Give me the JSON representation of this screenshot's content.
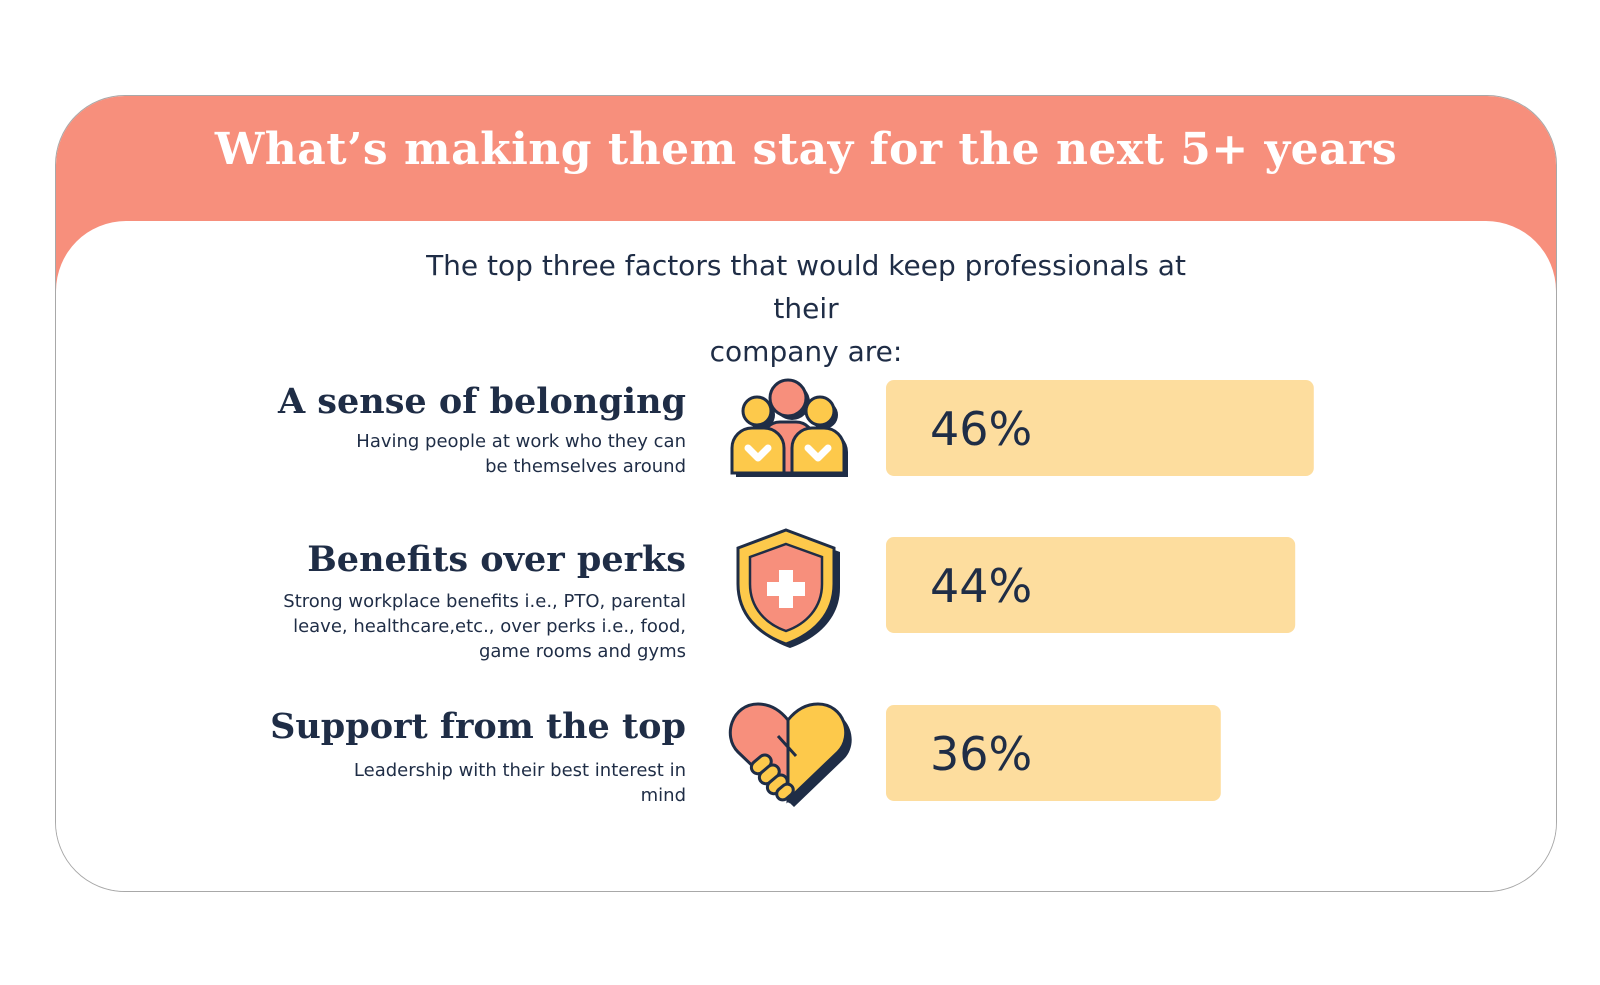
{
  "title": "What’s making them stay for the next 5+ years",
  "subtitle_line1": "The top three factors that would keep professionals at their",
  "subtitle_line2": "company are:",
  "colors": {
    "header": "#f78f7c",
    "bar": "#fddd9e",
    "text": "#1f2d46",
    "icon_yellow": "#fdc94b",
    "icon_coral": "#f78f7c"
  },
  "rows": [
    {
      "title": "A sense of belonging",
      "desc_lines": [
        "Having people at work who they can",
        "be themselves around"
      ],
      "icon": "people-heart-icon"
    },
    {
      "title": "Benefits over perks",
      "desc_lines": [
        "Strong workplace benefits i.e., PTO, parental",
        "leave, healthcare,etc., over perks i.e., food,",
        "game rooms and gyms"
      ],
      "icon": "shield-plus-icon"
    },
    {
      "title": "Support from the top",
      "desc_lines": [
        "Leadership with their best interest in",
        "mind"
      ],
      "icon": "handshake-heart-icon"
    }
  ],
  "chart_data": {
    "type": "bar",
    "orientation": "horizontal",
    "categories": [
      "A sense of belonging",
      "Benefits over perks",
      "Support from the top"
    ],
    "values": [
      46,
      44,
      36
    ],
    "labels": [
      "46%",
      "44%",
      "36%"
    ],
    "xlim": [
      0,
      100
    ]
  }
}
